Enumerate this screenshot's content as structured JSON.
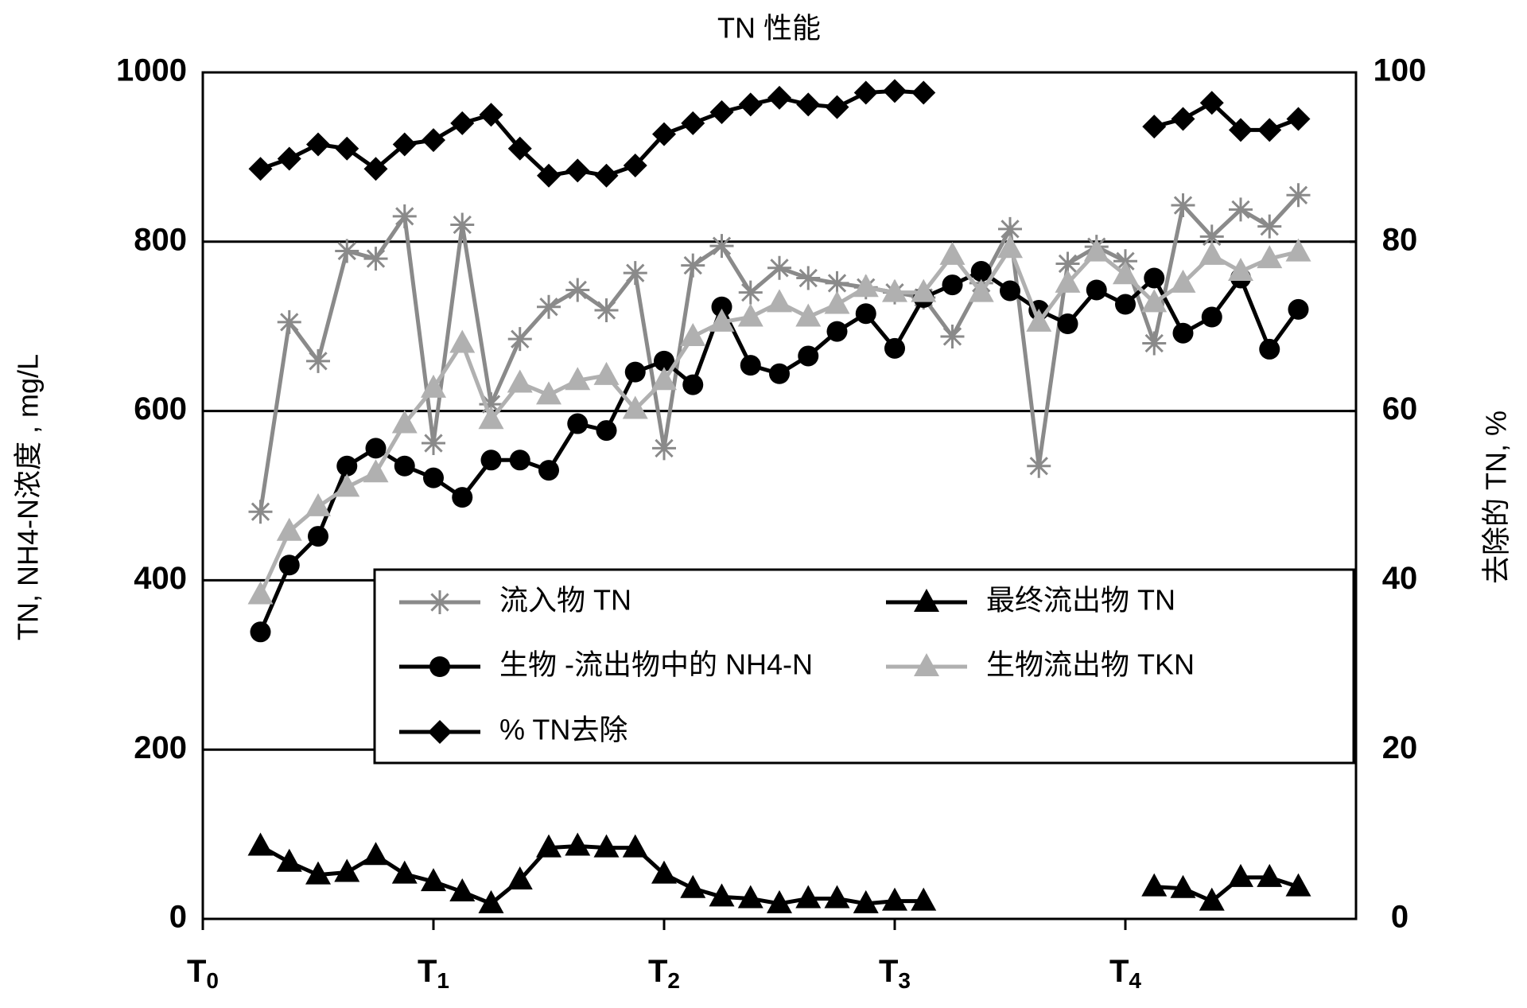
{
  "chart_data": {
    "type": "line",
    "title": "TN 性能",
    "y_label": "TN, NH4-N浓度 , mg/L",
    "y2_label": "去除的 TN, %",
    "x": [
      0.25,
      0.375,
      0.5,
      0.625,
      0.75,
      0.875,
      1.0,
      1.125,
      1.25,
      1.375,
      1.5,
      1.625,
      1.75,
      1.875,
      2.0,
      2.125,
      2.25,
      2.375,
      2.5,
      2.625,
      2.75,
      2.875,
      3.0,
      3.125,
      3.25,
      3.375,
      3.5,
      3.625,
      3.75,
      3.875,
      4.0,
      4.125,
      4.25,
      4.375,
      4.5,
      4.625,
      4.75
    ],
    "xlim": [
      0,
      5
    ],
    "xticks": [
      {
        "value": 0,
        "label": "T0"
      },
      {
        "value": 1,
        "label": "T1"
      },
      {
        "value": 2,
        "label": "T2"
      },
      {
        "value": 3,
        "label": "T3"
      },
      {
        "value": 4,
        "label": "T4"
      }
    ],
    "ylim": [
      0,
      1000
    ],
    "yticks": [
      0,
      200,
      400,
      600,
      800,
      1000
    ],
    "y2lim": [
      0,
      100
    ],
    "y2ticks": [
      0,
      20,
      40,
      60,
      80,
      100
    ],
    "grid": true,
    "legend": "center-right",
    "series": [
      {
        "name": "流入物 TN",
        "color": "#8a8a8a",
        "marker": "star",
        "values": [
          481,
          705,
          659,
          789,
          780,
          830,
          562,
          820,
          608,
          685,
          723,
          743,
          719,
          763,
          556,
          772,
          795,
          740,
          769,
          757,
          751,
          746,
          740,
          734,
          688,
          751,
          815,
          535,
          774,
          794,
          777,
          680,
          843,
          806,
          838,
          818,
          855
        ]
      },
      {
        "name": "最终流出物 TN",
        "color": "#000000",
        "marker": "triangle",
        "values": [
          86,
          67,
          52,
          55,
          75,
          53,
          44,
          32,
          18,
          46,
          84,
          86,
          84,
          84,
          53,
          36,
          26,
          24,
          18,
          24,
          24,
          18,
          21,
          21,
          null,
          null,
          null,
          null,
          null,
          null,
          null,
          38,
          36,
          21,
          49,
          49,
          38
        ]
      },
      {
        "name": "生物 -流出物中的 NH4-N",
        "color": "#000000",
        "marker": "circle",
        "values": [
          339,
          418,
          452,
          535,
          556,
          535,
          521,
          498,
          542,
          542,
          530,
          585,
          577,
          646,
          659,
          631,
          723,
          654,
          644,
          665,
          694,
          715,
          674,
          734,
          749,
          765,
          742,
          719,
          703,
          743,
          726,
          757,
          692,
          711,
          757,
          673,
          720
        ]
      },
      {
        "name": "生物流出物 TKN",
        "color": "#b0b0b0",
        "marker": "triangle",
        "values": [
          383,
          458,
          487,
          510,
          527,
          585,
          627,
          680,
          590,
          633,
          619,
          636,
          642,
          602,
          636,
          688,
          705,
          711,
          728,
          711,
          726,
          746,
          740,
          740,
          784,
          740,
          792,
          705,
          751,
          788,
          761,
          728,
          751,
          784,
          765,
          780,
          788
        ]
      },
      {
        "name": "% TN去除",
        "color": "#000000",
        "marker": "diamond",
        "axis": "y2",
        "values": [
          88.6,
          89.8,
          91.5,
          91,
          88.6,
          91.5,
          92,
          94,
          95,
          91,
          87.8,
          88.4,
          87.8,
          89,
          92.7,
          94,
          95.3,
          96.2,
          97,
          96.2,
          95.9,
          97.6,
          97.8,
          97.6,
          null,
          null,
          null,
          null,
          null,
          null,
          null,
          93.6,
          94.5,
          96.4,
          93.2,
          93.2,
          94.5
        ]
      }
    ]
  }
}
